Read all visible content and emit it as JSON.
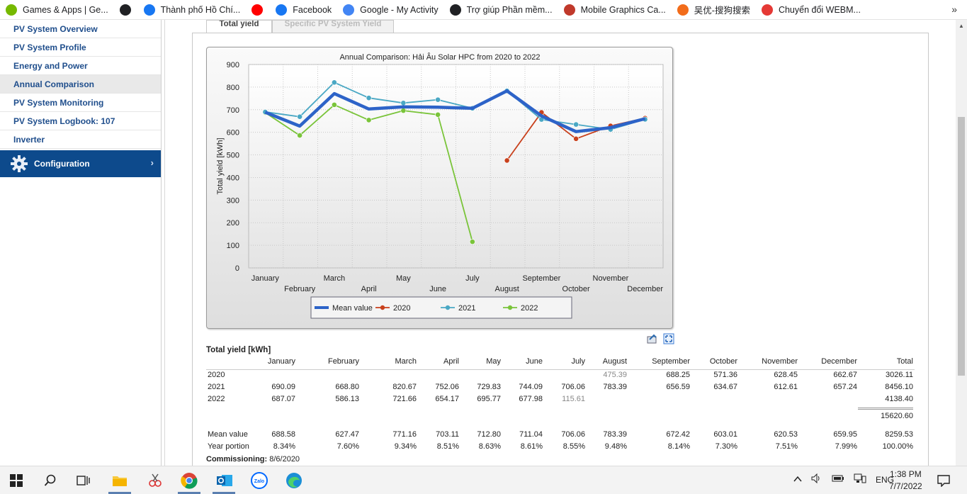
{
  "bookmarks": [
    {
      "label": "Games & Apps | Ge...",
      "icon": "nvidia-icon",
      "color": "#76b900"
    },
    {
      "label": "",
      "icon": "globe-icon",
      "color": "#202124"
    },
    {
      "label": "Thành phố Hồ Chí...",
      "icon": "facebook-icon",
      "color": "#1877f2"
    },
    {
      "label": "",
      "icon": "youtube-icon",
      "color": "#ff0000"
    },
    {
      "label": "Facebook",
      "icon": "facebook-icon",
      "color": "#1877f2"
    },
    {
      "label": "Google - My Activity",
      "icon": "google-icon",
      "color": "#4285f4"
    },
    {
      "label": "Trợ giúp Phần mềm...",
      "icon": "globe-icon",
      "color": "#202124"
    },
    {
      "label": "Mobile Graphics Ca...",
      "icon": "bookmark-icon",
      "color": "#c0392b"
    },
    {
      "label": "吴优-搜狗搜索",
      "icon": "sogou-icon",
      "color": "#f26c1a"
    },
    {
      "label": "Chuyển đổi WEBM...",
      "icon": "convert-icon",
      "color": "#e53935"
    }
  ],
  "bookmarks_more": "»",
  "sidebar": {
    "items": [
      {
        "label": "PV System Overview",
        "active": false
      },
      {
        "label": "PV System Profile",
        "active": false
      },
      {
        "label": "Energy and Power",
        "active": false
      },
      {
        "label": "Annual Comparison",
        "active": true
      },
      {
        "label": "PV System Monitoring",
        "active": false
      },
      {
        "label": "PV System Logbook: 107",
        "active": false
      },
      {
        "label": "Inverter",
        "active": false
      }
    ],
    "config_label": "Configuration",
    "config_chevron": "›"
  },
  "tabs": {
    "total": "Total yield",
    "specific": "Specific PV System Yield"
  },
  "chart_data": {
    "type": "line",
    "title": "Annual Comparison: Hải Âu Solar HPC from 2020 to 2022",
    "ylabel": "Total yield [kWh]",
    "xlabel": "",
    "ylim": [
      0,
      900
    ],
    "yticks": [
      0,
      100,
      200,
      300,
      400,
      500,
      600,
      700,
      800,
      900
    ],
    "grid": true,
    "legend_position": "bottom",
    "categories": [
      "January",
      "February",
      "March",
      "April",
      "May",
      "June",
      "July",
      "August",
      "September",
      "October",
      "November",
      "December"
    ],
    "series": [
      {
        "name": "Mean value",
        "color": "#2d63c8",
        "width": 4.5,
        "marker": false,
        "values": [
          688.58,
          627.47,
          771.16,
          703.11,
          712.8,
          711.04,
          706.06,
          783.39,
          672.42,
          603.01,
          620.53,
          659.95
        ]
      },
      {
        "name": "2020",
        "color": "#c8401c",
        "width": 1.8,
        "marker": true,
        "values": [
          null,
          null,
          null,
          null,
          null,
          null,
          null,
          475.39,
          688.25,
          571.36,
          628.45,
          662.67
        ]
      },
      {
        "name": "2021",
        "color": "#4aa8c4",
        "width": 1.8,
        "marker": true,
        "values": [
          690.09,
          668.8,
          820.67,
          752.06,
          729.83,
          744.09,
          706.06,
          783.39,
          656.59,
          634.67,
          612.61,
          657.24
        ]
      },
      {
        "name": "2022",
        "color": "#7ac43a",
        "width": 1.8,
        "marker": true,
        "values": [
          687.07,
          586.13,
          721.66,
          654.17,
          695.77,
          677.98,
          115.61,
          null,
          null,
          null,
          null,
          null
        ]
      }
    ]
  },
  "table": {
    "title": "Total yield [kWh]",
    "columns": [
      "January",
      "February",
      "March",
      "April",
      "May",
      "June",
      "July",
      "August",
      "September",
      "October",
      "November",
      "December",
      "Total"
    ],
    "rows": [
      {
        "label": "2020",
        "values": [
          "",
          "",
          "",
          "",
          "",
          "",
          "",
          "475.39",
          "688.25",
          "571.36",
          "628.45",
          "662.67",
          "3026.11"
        ],
        "grey": [
          7
        ]
      },
      {
        "label": "2021",
        "values": [
          "690.09",
          "668.80",
          "820.67",
          "752.06",
          "729.83",
          "744.09",
          "706.06",
          "783.39",
          "656.59",
          "634.67",
          "612.61",
          "657.24",
          "8456.10"
        ],
        "grey": []
      },
      {
        "label": "2022",
        "values": [
          "687.07",
          "586.13",
          "721.66",
          "654.17",
          "695.77",
          "677.98",
          "115.61",
          "",
          "",
          "",
          "",
          "",
          "4138.40"
        ],
        "grey": [
          6
        ]
      }
    ],
    "grand_total": "15620.60",
    "mean": {
      "label": "Mean value",
      "values": [
        "688.58",
        "627.47",
        "771.16",
        "703.11",
        "712.80",
        "711.04",
        "706.06",
        "783.39",
        "672.42",
        "603.01",
        "620.53",
        "659.95",
        "8259.53"
      ]
    },
    "portion": {
      "label": "Year portion",
      "values": [
        "8.34%",
        "7.60%",
        "9.34%",
        "8.51%",
        "8.63%",
        "8.61%",
        "8.55%",
        "9.48%",
        "8.14%",
        "7.30%",
        "7.51%",
        "7.99%",
        "100.00%"
      ]
    },
    "commissioning_label": "Commissioning:",
    "commissioning_date": "8/6/2020"
  },
  "taskbar": {
    "tray_language": "ENG",
    "time": "1:38 PM",
    "date": "7/7/2022"
  }
}
